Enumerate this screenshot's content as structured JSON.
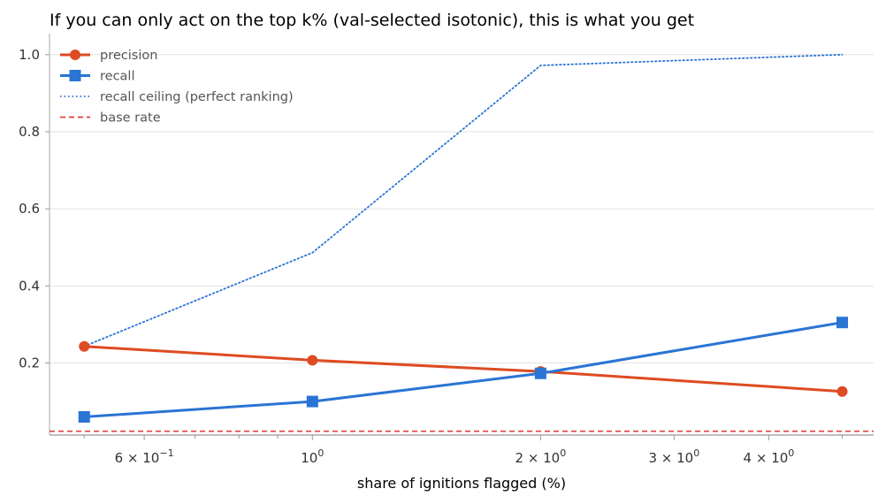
{
  "chart_data": {
    "type": "line",
    "title": "If you can only act on the top k% (val-selected isotonic), this is what you get",
    "xlabel": "share of ignitions flagged (%)",
    "ylabel": "",
    "xscale": "log",
    "x": [
      0.5,
      1.0,
      2.0,
      5.0
    ],
    "xlim": [
      0.45,
      5.5
    ],
    "ylim": [
      0.013,
      1.05
    ],
    "yticks": [
      1.0,
      0.8,
      0.6,
      0.4,
      0.2
    ],
    "ytick_labels": [
      "1.0",
      "0.8",
      "0.6",
      "0.4",
      "0.2"
    ],
    "xticks": [
      {
        "value": 0.6,
        "base": "6 × 10",
        "exp": "−1"
      },
      {
        "value": 1.0,
        "base": "10",
        "exp": "0"
      },
      {
        "value": 2.0,
        "base": "2 × 10",
        "exp": "0"
      },
      {
        "value": 3.0,
        "base": "3 × 10",
        "exp": "0"
      },
      {
        "value": 4.0,
        "base": "4 × 10",
        "exp": "0"
      }
    ],
    "minor_xticks": [
      0.5,
      0.7,
      0.8,
      0.9,
      5.0
    ],
    "grid": "horizontal",
    "legend_position": "upper-left",
    "series": [
      {
        "name": "precision",
        "values": [
          0.243,
          0.207,
          0.178,
          0.126
        ],
        "color": "#dd4b22",
        "style": "solid",
        "marker": "circle"
      },
      {
        "name": "recall",
        "values": [
          0.06,
          0.1,
          0.173,
          0.305
        ],
        "color": "#2a74d4",
        "style": "solid",
        "marker": "square"
      },
      {
        "name": "recall ceiling (perfect ranking)",
        "values": [
          0.243,
          0.486,
          0.972,
          1.0
        ],
        "color": "#2a74d4",
        "style": "dotted",
        "marker": "none"
      }
    ],
    "hlines": [
      {
        "name": "base rate",
        "value": 0.023,
        "color": "#e0413e",
        "style": "dashed"
      }
    ]
  }
}
